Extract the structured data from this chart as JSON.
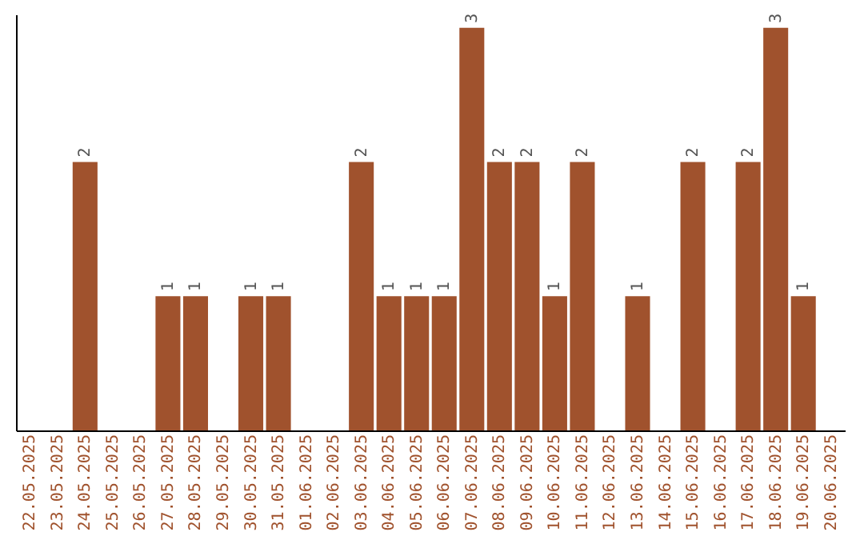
{
  "chart_data": {
    "type": "bar",
    "categories": [
      "22.05.2025",
      "23.05.2025",
      "24.05.2025",
      "25.05.2025",
      "26.05.2025",
      "27.05.2025",
      "28.05.2025",
      "29.05.2025",
      "30.05.2025",
      "31.05.2025",
      "01.06.2025",
      "02.06.2025",
      "03.06.2025",
      "04.06.2025",
      "05.06.2025",
      "06.06.2025",
      "07.06.2025",
      "08.06.2025",
      "09.06.2025",
      "10.06.2025",
      "11.06.2025",
      "12.06.2025",
      "13.06.2025",
      "14.06.2025",
      "15.06.2025",
      "16.06.2025",
      "17.06.2025",
      "18.06.2025",
      "19.06.2025",
      "20.06.2025"
    ],
    "values": [
      0,
      0,
      2,
      0,
      0,
      1,
      1,
      0,
      1,
      1,
      0,
      0,
      2,
      1,
      1,
      1,
      3,
      2,
      2,
      1,
      2,
      0,
      1,
      0,
      2,
      0,
      2,
      3,
      1,
      0
    ],
    "value_labels": [
      null,
      null,
      "2",
      null,
      null,
      "1",
      "1",
      null,
      "1",
      "1",
      null,
      null,
      "2",
      "1",
      "1",
      "1",
      "3",
      "2",
      "2",
      "1",
      "2",
      null,
      "1",
      null,
      "2",
      null,
      "2",
      "3",
      "1",
      null
    ],
    "color": "#a0522d",
    "ylim": [
      0,
      3.1
    ],
    "tick_labels": "x",
    "grid": false
  }
}
